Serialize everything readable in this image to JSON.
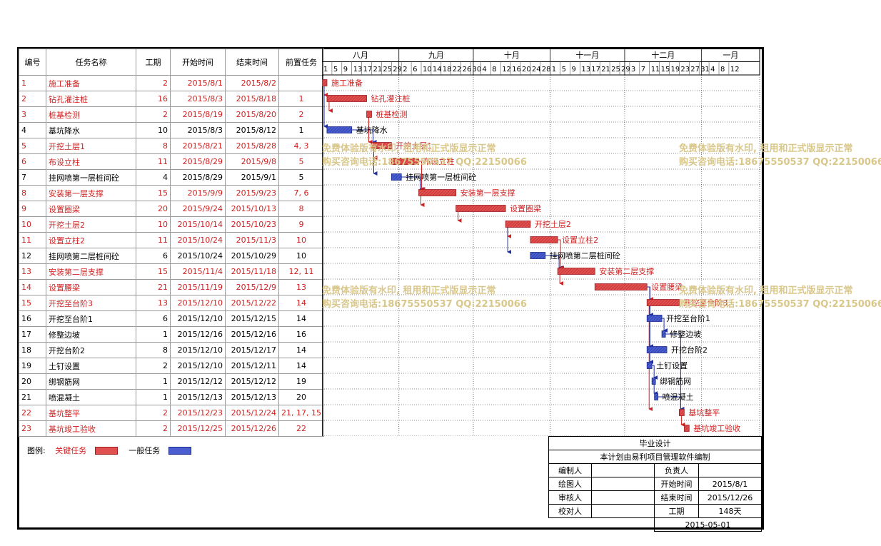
{
  "headers": {
    "id": "编号",
    "name": "任务名称",
    "duration": "工期",
    "start": "开始时间",
    "end": "结束时间",
    "pred": "前置任务"
  },
  "months": [
    {
      "label": "八月",
      "days": [
        "1",
        "5",
        "9",
        "13",
        "17",
        "21",
        "25",
        "29"
      ]
    },
    {
      "label": "九月",
      "days": [
        "2",
        "6",
        "10",
        "14",
        "18",
        "22",
        "26",
        "30"
      ]
    },
    {
      "label": "十月",
      "days": [
        "4",
        "8",
        "12",
        "16",
        "20",
        "24",
        "28"
      ]
    },
    {
      "label": "十一月",
      "days": [
        "1",
        "5",
        "9",
        "13",
        "17",
        "21",
        "25",
        "29"
      ]
    },
    {
      "label": "十二月",
      "days": [
        "3",
        "7",
        "11",
        "15",
        "19",
        "23",
        "27",
        "31"
      ]
    },
    {
      "label": "一月",
      "days": [
        "4",
        "8",
        "12"
      ]
    }
  ],
  "legend": {
    "label": "图例:",
    "critical": "关键任务",
    "normal": "一般任务"
  },
  "titleblock": {
    "title": "毕业设计",
    "subtitle": "本计划由易利项目管理软件编制",
    "editor": "编制人",
    "responsible": "负责人",
    "drawer": "绘图人",
    "start_label": "开始时间",
    "start_value": "2015/8/1",
    "reviewer": "审核人",
    "end_label": "结束时间",
    "end_value": "2015/12/26",
    "checker": "校对人",
    "duration_label": "工期",
    "duration_value": "148天",
    "date": "2015-05-01"
  },
  "watermark": {
    "line1": "免费体验版有水印, 租用和正式版显示正常",
    "line2": "购买咨询电话:18675550537 QQ:22150066"
  },
  "colors": {
    "critical": "#e05050",
    "normal": "#4a5ed0",
    "critical_text": "#d02020"
  },
  "chart_data": {
    "type": "gantt",
    "x_range": [
      "2015/8/1",
      "2016/1/15"
    ],
    "tasks": [
      {
        "id": "1",
        "name": "施工准备",
        "duration": "2",
        "start": "2015/8/1",
        "end": "2015/8/2",
        "pred": "",
        "critical": true
      },
      {
        "id": "2",
        "name": "钻孔灌注桩",
        "duration": "16",
        "start": "2015/8/3",
        "end": "2015/8/18",
        "pred": "1",
        "critical": true
      },
      {
        "id": "3",
        "name": "桩基检测",
        "duration": "2",
        "start": "2015/8/19",
        "end": "2015/8/20",
        "pred": "2",
        "critical": true
      },
      {
        "id": "4",
        "name": "基坑降水",
        "duration": "10",
        "start": "2015/8/3",
        "end": "2015/8/12",
        "pred": "1",
        "critical": false
      },
      {
        "id": "5",
        "name": "开挖土层1",
        "duration": "8",
        "start": "2015/8/21",
        "end": "2015/8/28",
        "pred": "4, 3",
        "critical": true
      },
      {
        "id": "6",
        "name": "布设立柱",
        "duration": "11",
        "start": "2015/8/29",
        "end": "2015/9/8",
        "pred": "5",
        "critical": true
      },
      {
        "id": "7",
        "name": "挂网喷第一层桩间砼",
        "duration": "4",
        "start": "2015/8/29",
        "end": "2015/9/1",
        "pred": "5",
        "critical": false
      },
      {
        "id": "8",
        "name": "安装第一层支撑",
        "duration": "15",
        "start": "2015/9/9",
        "end": "2015/9/23",
        "pred": "7, 6",
        "critical": true
      },
      {
        "id": "9",
        "name": "设置圈梁",
        "duration": "20",
        "start": "2015/9/24",
        "end": "2015/10/13",
        "pred": "8",
        "critical": true
      },
      {
        "id": "10",
        "name": "开挖土层2",
        "duration": "10",
        "start": "2015/10/14",
        "end": "2015/10/23",
        "pred": "9",
        "critical": true
      },
      {
        "id": "11",
        "name": "设置立柱2",
        "duration": "11",
        "start": "2015/10/24",
        "end": "2015/11/3",
        "pred": "10",
        "critical": true
      },
      {
        "id": "12",
        "name": "挂网喷第二层桩间砼",
        "duration": "6",
        "start": "2015/10/24",
        "end": "2015/10/29",
        "pred": "10",
        "critical": false
      },
      {
        "id": "13",
        "name": "安装第二层支撑",
        "duration": "15",
        "start": "2015/11/4",
        "end": "2015/11/18",
        "pred": "12, 11",
        "critical": true
      },
      {
        "id": "14",
        "name": "设置腰梁",
        "duration": "21",
        "start": "2015/11/19",
        "end": "2015/12/9",
        "pred": "13",
        "critical": true
      },
      {
        "id": "15",
        "name": "开挖至台阶3",
        "duration": "13",
        "start": "2015/12/10",
        "end": "2015/12/22",
        "pred": "14",
        "critical": true
      },
      {
        "id": "16",
        "name": "开挖至台阶1",
        "duration": "6",
        "start": "2015/12/10",
        "end": "2015/12/15",
        "pred": "14",
        "critical": false
      },
      {
        "id": "17",
        "name": "修整边坡",
        "duration": "1",
        "start": "2015/12/16",
        "end": "2015/12/16",
        "pred": "16",
        "critical": false
      },
      {
        "id": "18",
        "name": "开挖台阶2",
        "duration": "8",
        "start": "2015/12/10",
        "end": "2015/12/17",
        "pred": "14",
        "critical": false
      },
      {
        "id": "19",
        "name": "土钉设置",
        "duration": "2",
        "start": "2015/12/10",
        "end": "2015/12/11",
        "pred": "14",
        "critical": false
      },
      {
        "id": "20",
        "name": "绑钢筋网",
        "duration": "1",
        "start": "2015/12/12",
        "end": "2015/12/12",
        "pred": "19",
        "critical": false
      },
      {
        "id": "21",
        "name": "喷混凝土",
        "duration": "1",
        "start": "2015/12/13",
        "end": "2015/12/13",
        "pred": "20",
        "critical": false
      },
      {
        "id": "22",
        "name": "基坑整平",
        "duration": "2",
        "start": "2015/12/23",
        "end": "2015/12/24",
        "pred": "21, 17, 15",
        "critical": true
      },
      {
        "id": "23",
        "name": "基坑竣工验收",
        "duration": "2",
        "start": "2015/12/25",
        "end": "2015/12/26",
        "pred": "22",
        "critical": true
      }
    ]
  }
}
